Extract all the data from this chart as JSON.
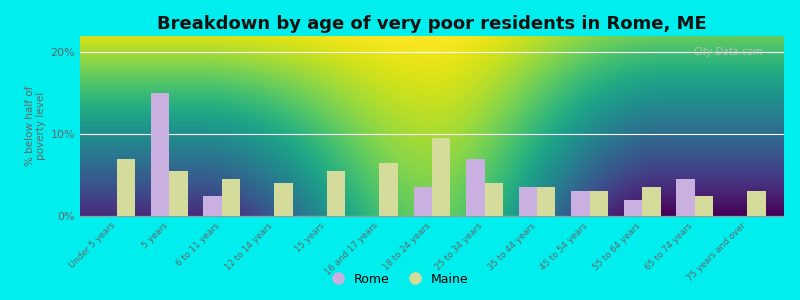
{
  "title": "Breakdown by age of very poor residents in Rome, ME",
  "categories": [
    "Under 5 years",
    "5 years",
    "6 to 11 years",
    "12 to 14 years",
    "15 years",
    "16 and 17 years",
    "18 to 24 years",
    "25 to 34 years",
    "35 to 44 years",
    "45 to 54 years",
    "55 to 64 years",
    "65 to 74 years",
    "75 years and over"
  ],
  "rome_values": [
    0,
    15.0,
    2.5,
    0,
    0,
    0,
    3.5,
    7.0,
    3.5,
    3.0,
    2.0,
    4.5,
    0
  ],
  "maine_values": [
    7.0,
    5.5,
    4.5,
    4.0,
    5.5,
    6.5,
    9.5,
    4.0,
    3.5,
    3.0,
    3.5,
    2.5,
    3.0
  ],
  "rome_color": "#c9b0e0",
  "maine_color": "#d4db9b",
  "background_outer": "#00eeee",
  "ylabel": "% below half of\npoverty level",
  "ylim": [
    0,
    22
  ],
  "yticks": [
    0,
    10,
    20
  ],
  "ytick_labels": [
    "0%",
    "10%",
    "20%"
  ],
  "title_fontsize": 13,
  "legend_rome": "Rome",
  "legend_maine": "Maine",
  "watermark": "City-Data.com"
}
